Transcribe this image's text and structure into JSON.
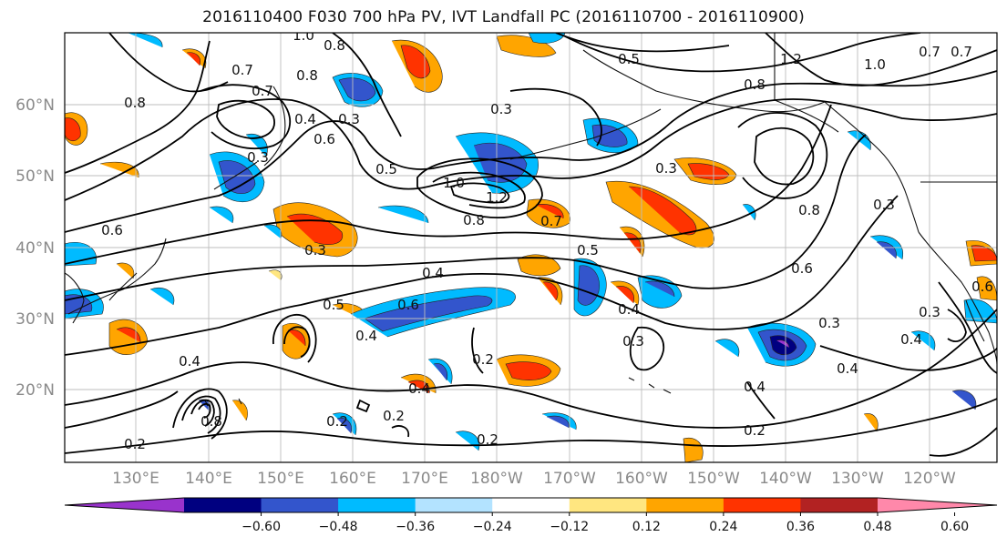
{
  "title": "2016110400 F030 700 hPa PV, IVT Landfall PC (2016110700 - 2016110900)",
  "latitudes": [
    "60°N",
    "50°N",
    "40°N",
    "30°N",
    "20°N"
  ],
  "longitudes": [
    "130°E",
    "140°E",
    "150°E",
    "160°E",
    "170°E",
    "180°W",
    "170°W",
    "160°W",
    "150°W",
    "140°W",
    "130°W",
    "120°W"
  ],
  "colorbar": {
    "ticks": [
      "−0.60",
      "−0.48",
      "−0.36",
      "−0.24",
      "−0.12",
      "0.12",
      "0.24",
      "0.36",
      "0.48",
      "0.60"
    ],
    "colors": [
      "#9933cc",
      "#000080",
      "#3355cc",
      "#00bbff",
      "#b3e3ff",
      "#ffffff",
      "#ffe680",
      "#ffa500",
      "#ff3300",
      "#b22222",
      "#ff88aa"
    ]
  },
  "contour_labels": [
    "1.0",
    "0.8",
    "0.7",
    "0.7",
    "0.8",
    "0.8",
    "0.4",
    "0.3",
    "0.3",
    "0.6",
    "0.5",
    "1.0",
    "1.2",
    "0.8",
    "0.7",
    "0.5",
    "0.8",
    "0.3",
    "1.2",
    "1.0",
    "0.7",
    "0.8",
    "0.6",
    "0.3",
    "0.6",
    "0.5",
    "0.6",
    "0.4",
    "0.3",
    "0.3",
    "0.4",
    "0.2",
    "0.2",
    "0.2",
    "0.4",
    "0.2",
    "0.8",
    "0.2",
    "0.4",
    "0.3",
    "0.4",
    "0.2",
    "0.4",
    "0.3",
    "0.3",
    "0.4",
    "0.6",
    "0.7",
    "0.5",
    "0.4"
  ]
}
